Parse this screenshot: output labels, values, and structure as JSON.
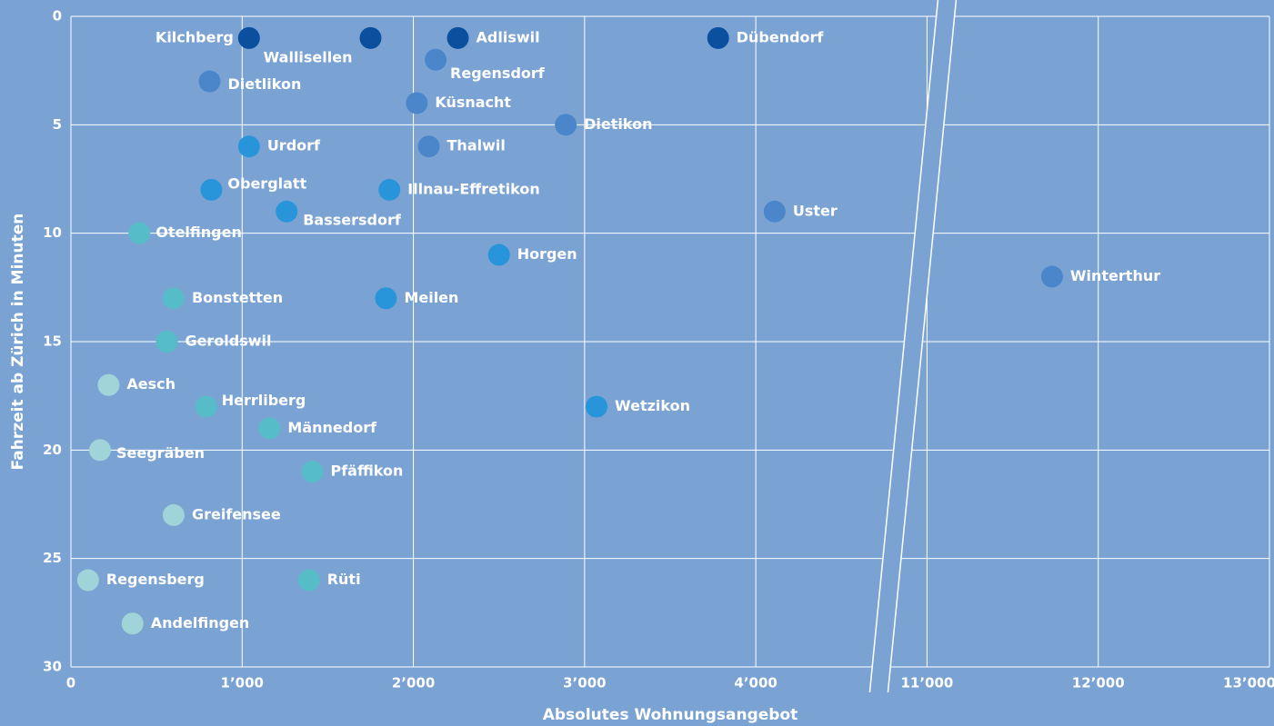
{
  "chart_data": {
    "type": "scatter",
    "xlabel": "Absolutes Wohnungsangebot",
    "ylabel": "Fahrzeit ab Zürich in Minuten",
    "labels": [
      "Kilchberg",
      "Wallisellen",
      "Adliswil",
      "Dübendorf",
      "Regensdorf",
      "Dietlikon",
      "Küsnacht",
      "Dietikon",
      "Urdorf",
      "Thalwil",
      "Oberglatt",
      "Illnau-Effretikon",
      "Bassersdorf",
      "Uster",
      "Otelfingen",
      "Horgen",
      "Winterthur",
      "Bonstetten",
      "Meilen",
      "Geroldswil",
      "Aesch",
      "Herrliberg",
      "Wetzikon",
      "Männedorf",
      "Seegräben",
      "Pfäffikon",
      "Greifensee",
      "Regensberg",
      "Rüti",
      "Andelfingen"
    ],
    "x": [
      1040,
      1750,
      2260,
      3780,
      2130,
      810,
      2020,
      2890,
      1040,
      2090,
      820,
      1860,
      1260,
      4110,
      400,
      2500,
      11730,
      600,
      1840,
      560,
      220,
      790,
      3070,
      1160,
      170,
      1410,
      600,
      100,
      1390,
      360
    ],
    "values": [
      1,
      1,
      1,
      1,
      2,
      3,
      4,
      5,
      6,
      6,
      8,
      8,
      9,
      9,
      10,
      11,
      12,
      13,
      13,
      15,
      17,
      18,
      18,
      19,
      20,
      21,
      23,
      26,
      26,
      28
    ],
    "colors": [
      "#0b4f9f",
      "#0b4f9f",
      "#0b4f9f",
      "#0b4f9f",
      "#4a86c9",
      "#4a86c9",
      "#4a86c9",
      "#4a86c9",
      "#2895da",
      "#4a86c9",
      "#2895da",
      "#2895da",
      "#2895da",
      "#4a86c9",
      "#55bcc8",
      "#2895da",
      "#4a86c9",
      "#55bcc8",
      "#2895da",
      "#55bcc8",
      "#a1d4d8",
      "#55bcc8",
      "#2895da",
      "#55bcc8",
      "#a1d4d8",
      "#55bcc8",
      "#a1d4d8",
      "#a1d4d8",
      "#55bcc8",
      "#a1d4d8"
    ],
    "xlim": [
      0,
      13000
    ],
    "x_break": [
      5000,
      11000
    ],
    "xticks": [
      0,
      {
        "value": 1000,
        "label": "1’000"
      },
      {
        "value": 2000,
        "label": "2’000"
      },
      {
        "value": 3000,
        "label": "3’000"
      },
      {
        "value": 4000,
        "label": "4’000"
      },
      {
        "value": 11000,
        "label": "11’000"
      },
      {
        "value": 12000,
        "label": "12’000"
      },
      {
        "value": 13000,
        "label": "13’000"
      }
    ],
    "ylim": [
      0,
      30
    ],
    "yticks": [
      0,
      5,
      10,
      15,
      20,
      25,
      30
    ],
    "y_inverted": true,
    "grid": true
  }
}
